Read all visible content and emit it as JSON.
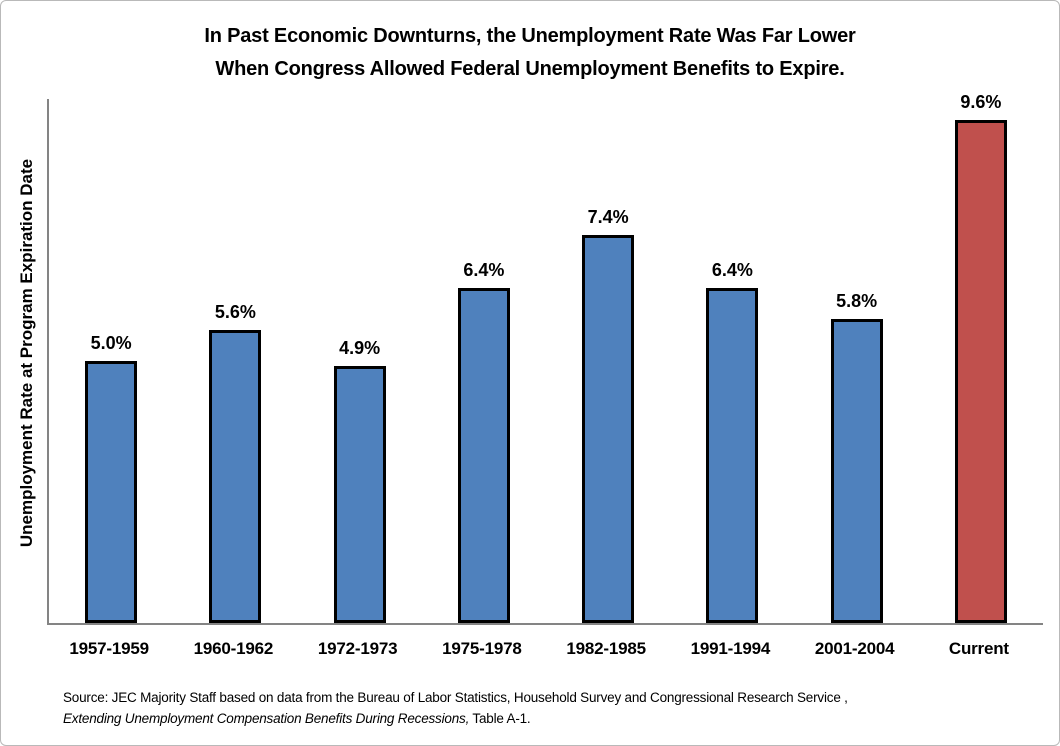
{
  "title": {
    "line1": "In Past Economic Downturns, the Unemployment Rate Was Far Lower",
    "line2": "When Congress Allowed Federal Unemployment Benefits to Expire."
  },
  "y_axis_label": "Unemployment Rate at Program Expiration Date",
  "source": {
    "line1": "Source: JEC Majority Staff based on data from the Bureau of Labor Statistics, Household Survey and Congressional Research Service ,",
    "line2_italic": "Extending Unemployment Compensation Benefits During Recessions,",
    "line2_rest": " Table A-1."
  },
  "colors": {
    "bar_blue": "#4F81BD",
    "bar_red": "#C0504D",
    "bar_border": "#000000",
    "axis_line": "#848484"
  },
  "chart_data": {
    "type": "bar",
    "title": "In Past Economic Downturns, the Unemployment Rate Was Far Lower When Congress Allowed Federal Unemployment Benefits to Expire.",
    "categories": [
      "1957-1959",
      "1960-1962",
      "1972-1973",
      "1975-1978",
      "1982-1985",
      "1991-1994",
      "2001-2004",
      "Current"
    ],
    "values": [
      5.0,
      5.6,
      4.9,
      6.4,
      7.4,
      6.4,
      5.8,
      9.6
    ],
    "value_labels": [
      "5.0%",
      "5.6%",
      "4.9%",
      "6.4%",
      "7.4%",
      "6.4%",
      "5.8%",
      "9.6%"
    ],
    "bar_color_roles": [
      "blue",
      "blue",
      "blue",
      "blue",
      "blue",
      "blue",
      "blue",
      "red"
    ],
    "xlabel": "",
    "ylabel": "Unemployment Rate at Program Expiration Date",
    "ylim": [
      0,
      10
    ],
    "grid": false,
    "legend": false
  }
}
